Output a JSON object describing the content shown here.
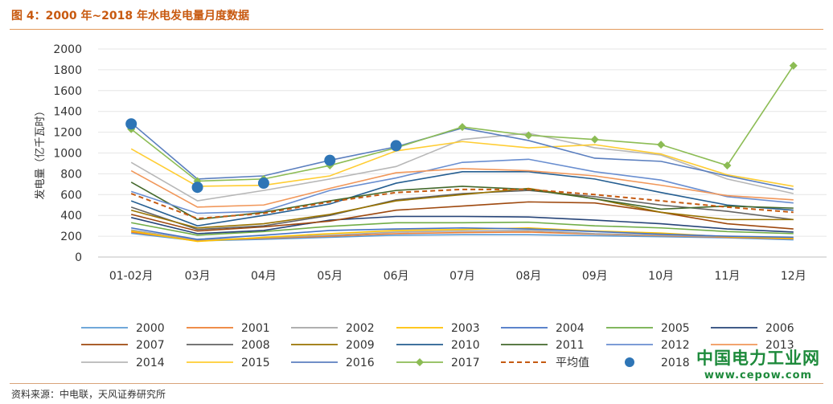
{
  "title": "图 4：2000 年~2018 年水电发电量月度数据",
  "source": "资料来源：中电联，天风证券研究所",
  "watermark": {
    "name": "中国电力工业网",
    "url": "www.cepow.com"
  },
  "chart_data": {
    "type": "line",
    "title": "",
    "xlabel": "",
    "ylabel": "发电量（亿千瓦时）",
    "ylim": [
      0,
      2000
    ],
    "ytick_step": 200,
    "grid": true,
    "legend_position": "bottom",
    "categories": [
      "01-02月",
      "03月",
      "04月",
      "05月",
      "06月",
      "07月",
      "08月",
      "09月",
      "10月",
      "11月",
      "12月"
    ],
    "series": [
      {
        "name": "2000",
        "color": "#5b9bd5",
        "values": [
          228,
          155,
          170,
          190,
          210,
          215,
          215,
          205,
          195,
          185,
          165
        ]
      },
      {
        "name": "2001",
        "color": "#ed7d31",
        "values": [
          240,
          160,
          180,
          200,
          225,
          235,
          240,
          220,
          205,
          190,
          175
        ]
      },
      {
        "name": "2002",
        "color": "#a5a5a5",
        "values": [
          260,
          165,
          185,
          210,
          240,
          250,
          255,
          225,
          210,
          195,
          180
        ]
      },
      {
        "name": "2003",
        "color": "#ffc000",
        "values": [
          250,
          150,
          190,
          225,
          255,
          265,
          280,
          250,
          230,
          195,
          180
        ]
      },
      {
        "name": "2004",
        "color": "#4472c4",
        "values": [
          280,
          170,
          210,
          255,
          270,
          280,
          270,
          245,
          220,
          200,
          190
        ]
      },
      {
        "name": "2005",
        "color": "#70ad47",
        "values": [
          330,
          210,
          245,
          295,
          330,
          330,
          335,
          300,
          280,
          245,
          225
        ]
      },
      {
        "name": "2006",
        "color": "#264478",
        "values": [
          380,
          225,
          255,
          355,
          390,
          390,
          385,
          355,
          320,
          270,
          240
        ]
      },
      {
        "name": "2007",
        "color": "#9e480e",
        "values": [
          410,
          250,
          290,
          345,
          450,
          490,
          530,
          520,
          430,
          320,
          270
        ]
      },
      {
        "name": "2008",
        "color": "#636363",
        "values": [
          480,
          265,
          300,
          400,
          550,
          610,
          640,
          580,
          500,
          440,
          360
        ]
      },
      {
        "name": "2009",
        "color": "#997300",
        "values": [
          450,
          280,
          320,
          410,
          540,
          600,
          660,
          560,
          430,
          360,
          360
        ]
      },
      {
        "name": "2010",
        "color": "#255e91",
        "values": [
          540,
          300,
          400,
          510,
          710,
          820,
          820,
          750,
          620,
          500,
          450
        ]
      },
      {
        "name": "2011",
        "color": "#43682b",
        "values": [
          720,
          360,
          430,
          540,
          640,
          680,
          650,
          560,
          460,
          490,
          470
        ]
      },
      {
        "name": "2012",
        "color": "#698ed0",
        "values": [
          630,
          420,
          440,
          640,
          760,
          910,
          940,
          820,
          740,
          580,
          520
        ]
      },
      {
        "name": "2013",
        "color": "#f1975a",
        "values": [
          830,
          480,
          500,
          660,
          810,
          850,
          830,
          780,
          690,
          590,
          550
        ]
      },
      {
        "name": "2014",
        "color": "#b7b7b7",
        "values": [
          910,
          540,
          640,
          750,
          870,
          1130,
          1190,
          1050,
          980,
          750,
          610
        ]
      },
      {
        "name": "2015",
        "color": "#ffcd33",
        "values": [
          1040,
          680,
          690,
          780,
          1020,
          1110,
          1050,
          1080,
          990,
          790,
          680
        ]
      },
      {
        "name": "2016",
        "color": "#5b7fbf",
        "values": [
          1290,
          750,
          780,
          930,
          1060,
          1240,
          1120,
          950,
          920,
          780,
          650
        ]
      },
      {
        "name": "2017",
        "color": "#8cbc54",
        "marker": "diamond",
        "values": [
          1230,
          730,
          750,
          880,
          1050,
          1250,
          1170,
          1130,
          1080,
          880,
          1840
        ]
      },
      {
        "name": "平均值",
        "color": "#c55a11",
        "dashed": true,
        "values": [
          610,
          370,
          420,
          530,
          620,
          650,
          650,
          600,
          540,
          480,
          430
        ]
      },
      {
        "name": "2018",
        "color": "#2e75b6",
        "style": "markers",
        "values": [
          1280,
          670,
          710,
          930,
          1070,
          null,
          null,
          null,
          null,
          null,
          null
        ]
      }
    ]
  }
}
